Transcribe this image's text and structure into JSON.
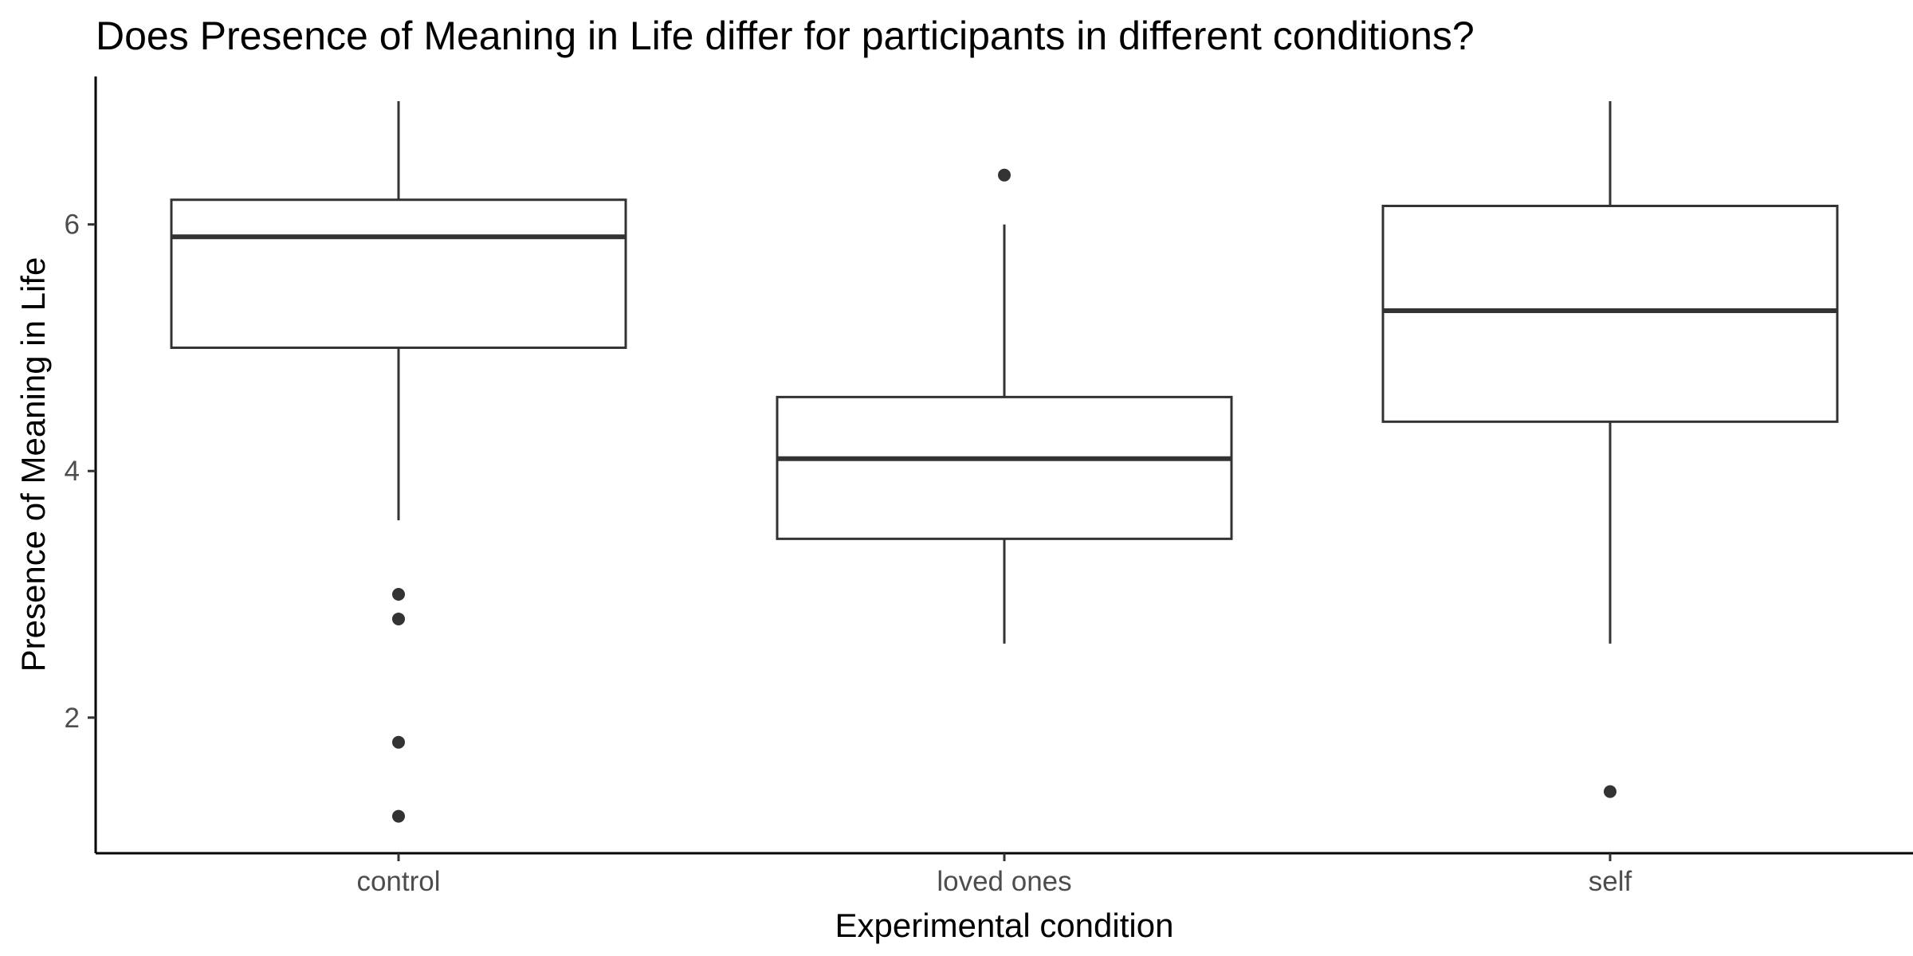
{
  "chart_data": {
    "type": "boxplot",
    "title": "Does Presence of Meaning in Life differ for participants in different conditions?",
    "xlabel": "Experimental condition",
    "ylabel": "Presence of Meaning in Life",
    "ylim": [
      0.9,
      7.2
    ],
    "yticks": [
      2,
      4,
      6
    ],
    "grid": false,
    "categories": [
      "control",
      "loved ones",
      "self"
    ],
    "boxes": [
      {
        "category": "control",
        "whisker_low": 3.6,
        "q1": 5.0,
        "median": 5.9,
        "q3": 6.2,
        "whisker_high": 7.0,
        "outliers": [
          3.0,
          2.8,
          1.8,
          1.2
        ]
      },
      {
        "category": "loved ones",
        "whisker_low": 2.6,
        "q1": 3.45,
        "median": 4.1,
        "q3": 4.6,
        "whisker_high": 6.0,
        "outliers": [
          6.4
        ]
      },
      {
        "category": "self",
        "whisker_low": 2.6,
        "q1": 4.4,
        "median": 5.3,
        "q3": 6.15,
        "whisker_high": 7.0,
        "outliers": [
          1.4
        ]
      }
    ],
    "colors": {
      "line": "#333333",
      "fill": "#ffffff",
      "axis": "#000000",
      "tick_label": "#4d4d4d"
    }
  }
}
